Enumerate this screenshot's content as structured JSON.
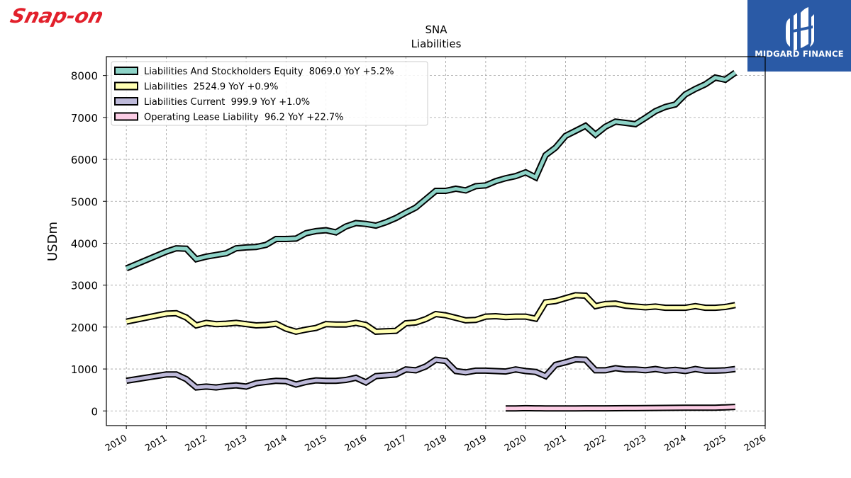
{
  "brand": {
    "left_logo_text": "Snap-on",
    "left_logo_color": "#e2202b",
    "right_logo_text": "MIDGARD FINANCE",
    "right_logo_bg": "#2a5aa6"
  },
  "chart_data": {
    "type": "line",
    "title": "SNA",
    "subtitle": "Liabilities",
    "ylabel": "USDm",
    "xlabel": "",
    "xlim": [
      2009.5,
      2026.0
    ],
    "ylim": [
      -350,
      8450
    ],
    "yticks": [
      0,
      1000,
      2000,
      3000,
      4000,
      5000,
      6000,
      7000,
      8000
    ],
    "xticks": [
      "2010",
      "2011",
      "2012",
      "2013",
      "2014",
      "2015",
      "2016",
      "2017",
      "2018",
      "2019",
      "2020",
      "2021",
      "2022",
      "2023",
      "2024",
      "2025",
      "2026"
    ],
    "grid": true,
    "legend_position": "top-left",
    "series": [
      {
        "name": "Liabilities And Stockholders Equity  8069.0 YoY +5.2%",
        "color": "#8dd3c7",
        "x": [
          2010.0,
          2011.0,
          2011.25,
          2011.5,
          2011.75,
          2012.0,
          2012.25,
          2012.5,
          2012.75,
          2013.0,
          2013.25,
          2013.5,
          2013.75,
          2014.0,
          2014.25,
          2014.5,
          2014.75,
          2015.0,
          2015.25,
          2015.5,
          2015.75,
          2016.0,
          2016.25,
          2016.5,
          2016.75,
          2017.0,
          2017.25,
          2017.5,
          2017.75,
          2018.0,
          2018.25,
          2018.5,
          2018.75,
          2019.0,
          2019.25,
          2019.5,
          2019.75,
          2020.0,
          2020.25,
          2020.5,
          2020.75,
          2021.0,
          2021.25,
          2021.5,
          2021.75,
          2022.0,
          2022.25,
          2022.5,
          2022.75,
          2023.0,
          2023.25,
          2023.5,
          2023.75,
          2024.0,
          2024.25,
          2024.5,
          2024.75,
          2025.0,
          2025.25
        ],
        "y": [
          3400,
          3800,
          3880,
          3870,
          3620,
          3680,
          3720,
          3760,
          3880,
          3900,
          3910,
          3960,
          4100,
          4100,
          4110,
          4240,
          4290,
          4310,
          4260,
          4400,
          4480,
          4460,
          4420,
          4500,
          4600,
          4730,
          4850,
          5050,
          5250,
          5250,
          5300,
          5260,
          5360,
          5380,
          5480,
          5550,
          5600,
          5690,
          5570,
          6100,
          6280,
          6560,
          6680,
          6800,
          6590,
          6780,
          6900,
          6870,
          6840,
          6990,
          7150,
          7250,
          7310,
          7550,
          7680,
          7790,
          7950,
          7900,
          8069
        ]
      },
      {
        "name": "Liabilities  2524.9 YoY +0.9%",
        "color": "#ffffb3",
        "x": [
          2010.0,
          2011.0,
          2011.25,
          2011.5,
          2011.75,
          2012.0,
          2012.25,
          2012.5,
          2012.75,
          2013.0,
          2013.25,
          2013.5,
          2013.75,
          2014.0,
          2014.25,
          2014.5,
          2014.75,
          2015.0,
          2015.25,
          2015.5,
          2015.75,
          2016.0,
          2016.25,
          2016.5,
          2016.75,
          2017.0,
          2017.25,
          2017.5,
          2017.75,
          2018.0,
          2018.25,
          2018.5,
          2018.75,
          2019.0,
          2019.25,
          2019.5,
          2019.75,
          2020.0,
          2020.25,
          2020.5,
          2020.75,
          2021.0,
          2021.25,
          2021.5,
          2021.75,
          2022.0,
          2022.25,
          2022.5,
          2022.75,
          2023.0,
          2023.25,
          2023.5,
          2023.75,
          2024.0,
          2024.25,
          2024.5,
          2024.75,
          2025.0,
          2025.25
        ],
        "y": [
          2130,
          2320,
          2330,
          2230,
          2040,
          2100,
          2070,
          2080,
          2100,
          2070,
          2040,
          2050,
          2080,
          1960,
          1890,
          1940,
          1980,
          2070,
          2060,
          2060,
          2100,
          2050,
          1890,
          1900,
          1910,
          2090,
          2110,
          2190,
          2310,
          2280,
          2220,
          2160,
          2170,
          2250,
          2260,
          2240,
          2250,
          2250,
          2200,
          2590,
          2620,
          2690,
          2760,
          2750,
          2500,
          2550,
          2560,
          2510,
          2490,
          2470,
          2490,
          2460,
          2460,
          2460,
          2500,
          2460,
          2460,
          2480,
          2525
        ]
      },
      {
        "name": "Liabilities Current  999.9 YoY +1.0%",
        "color": "#bebada",
        "x": [
          2010.0,
          2011.0,
          2011.25,
          2011.5,
          2011.75,
          2012.0,
          2012.25,
          2012.5,
          2012.75,
          2013.0,
          2013.25,
          2013.5,
          2013.75,
          2014.0,
          2014.25,
          2014.5,
          2014.75,
          2015.0,
          2015.25,
          2015.5,
          2015.75,
          2016.0,
          2016.25,
          2016.5,
          2016.75,
          2017.0,
          2017.25,
          2017.5,
          2017.75,
          2018.0,
          2018.25,
          2018.5,
          2018.75,
          2019.0,
          2019.25,
          2019.5,
          2019.75,
          2020.0,
          2020.25,
          2020.5,
          2020.75,
          2021.0,
          2021.25,
          2021.5,
          2021.75,
          2022.0,
          2022.25,
          2022.5,
          2022.75,
          2023.0,
          2023.25,
          2023.5,
          2023.75,
          2024.0,
          2024.25,
          2024.5,
          2024.75,
          2025.0,
          2025.25
        ],
        "y": [
          720,
          870,
          870,
          760,
          560,
          580,
          560,
          590,
          610,
          580,
          660,
          690,
          720,
          710,
          630,
          690,
          730,
          720,
          720,
          740,
          790,
          680,
          830,
          850,
          870,
          990,
          970,
          1060,
          1220,
          1190,
          950,
          920,
          960,
          960,
          950,
          940,
          990,
          950,
          930,
          830,
          1100,
          1160,
          1230,
          1220,
          970,
          970,
          1020,
          990,
          990,
          970,
          1000,
          960,
          980,
          950,
          1000,
          960,
          960,
          970,
          1000
        ]
      },
      {
        "name": "Operating Lease Liability  96.2 YoY +22.7%",
        "color": "#fccde5",
        "x": [
          2019.5,
          2019.75,
          2020.0,
          2020.25,
          2020.5,
          2020.75,
          2021.0,
          2021.25,
          2021.5,
          2021.75,
          2022.0,
          2022.25,
          2022.5,
          2022.75,
          2023.0,
          2023.25,
          2023.5,
          2023.75,
          2024.0,
          2024.25,
          2024.5,
          2024.75,
          2025.0,
          2025.25
        ],
        "y": [
          60,
          60,
          65,
          62,
          60,
          60,
          60,
          60,
          62,
          62,
          62,
          63,
          65,
          65,
          68,
          70,
          72,
          74,
          76,
          78,
          78,
          78,
          85,
          96
        ]
      }
    ]
  }
}
